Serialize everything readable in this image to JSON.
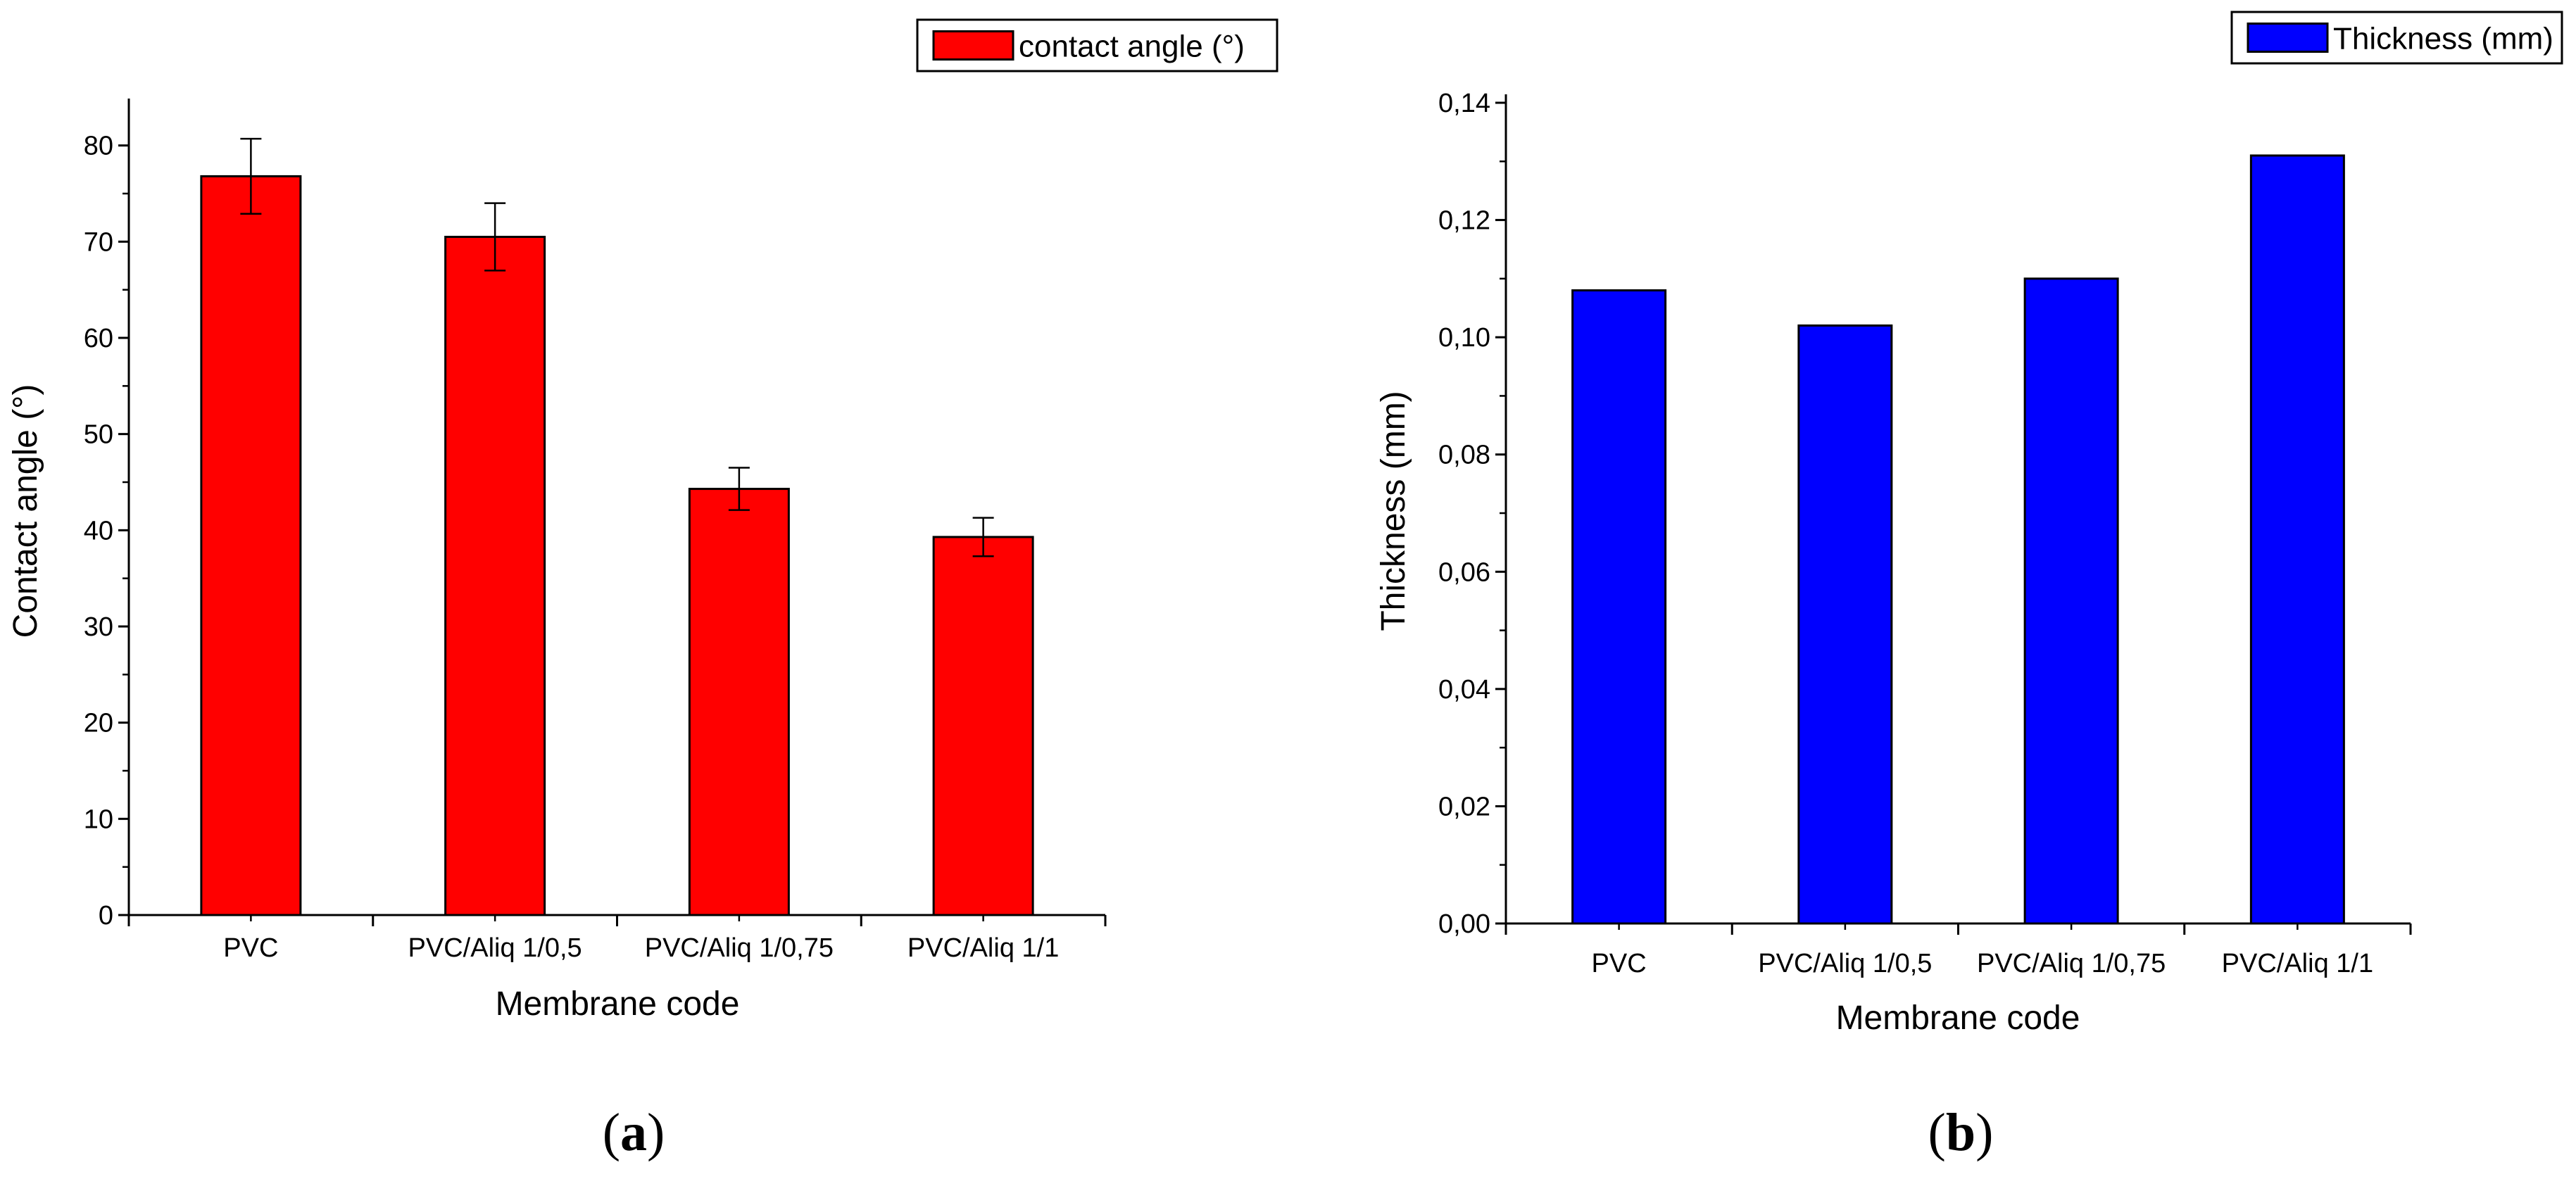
{
  "chart_data": [
    {
      "type": "bar",
      "panel": "a",
      "caption": {
        "open": "(",
        "letter": "a",
        "close": ")"
      },
      "categories": [
        "PVC",
        "PVC/Aliq 1/0,5",
        "PVC/Aliq 1/0,75",
        "PVC/Aliq 1/1"
      ],
      "series": [
        {
          "name": "contact angle (°)",
          "values": [
            76.8,
            70.5,
            44.3,
            39.3
          ],
          "errors": [
            3.9,
            3.5,
            2.2,
            2.0
          ],
          "color": "#ff0000"
        }
      ],
      "xlabel": "Membrane code",
      "ylabel": "Contact angle (°)",
      "ylim": [
        0,
        84
      ],
      "yticks": [
        0,
        10,
        20,
        30,
        40,
        50,
        60,
        70,
        80
      ],
      "ytick_labels": [
        "0",
        "10",
        "20",
        "30",
        "40",
        "50",
        "60",
        "70",
        "80"
      ],
      "legend": "top-right",
      "grid": false
    },
    {
      "type": "bar",
      "panel": "b",
      "caption": {
        "open": "(",
        "letter": "b",
        "close": ")"
      },
      "categories": [
        "PVC",
        "PVC/Aliq 1/0,5",
        "PVC/Aliq 1/0,75",
        "PVC/Aliq 1/1"
      ],
      "series": [
        {
          "name": "Thickness (mm)",
          "values": [
            0.108,
            0.102,
            0.11,
            0.131
          ],
          "color": "#0000ff"
        }
      ],
      "xlabel": "Membrane code",
      "ylabel": "Thickness (mm)",
      "ylim": [
        0,
        0.14
      ],
      "yticks": [
        0,
        0.02,
        0.04,
        0.06,
        0.08,
        0.1,
        0.12,
        0.14
      ],
      "ytick_labels": [
        "0,00",
        "0,02",
        "0,04",
        "0,06",
        "0,08",
        "0,10",
        "0,12",
        "0,14"
      ],
      "legend": "top-right",
      "grid": false
    }
  ]
}
